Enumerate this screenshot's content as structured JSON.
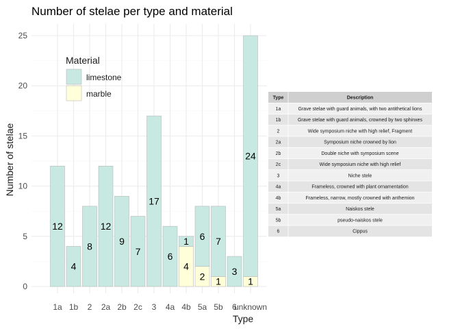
{
  "chart_data": {
    "type": "bar",
    "stacked": true,
    "title": "Number of stelae per type and material",
    "xlabel": "Type",
    "ylabel": "Number of stelae",
    "ylim": [
      0,
      25
    ],
    "y_ticks": [
      0,
      5,
      10,
      15,
      20,
      25
    ],
    "grid": true,
    "categories": [
      "1a",
      "1b",
      "2",
      "2a",
      "2b",
      "2c",
      "3",
      "4a",
      "4b",
      "5a",
      "5b",
      "6",
      "unknown"
    ],
    "series": [
      {
        "name": "limestone",
        "color": "#c7e9e1",
        "values": [
          12,
          4,
          8,
          12,
          9,
          7,
          17,
          6,
          1,
          6,
          7,
          3,
          24
        ]
      },
      {
        "name": "marble",
        "color": "#ffffd9",
        "values": [
          0,
          0,
          0,
          0,
          0,
          0,
          0,
          0,
          4,
          2,
          1,
          0,
          1
        ]
      }
    ],
    "legend": {
      "title": "Material",
      "placement": "top-left"
    },
    "table": {
      "headers": [
        "Type",
        "Description"
      ],
      "rows": [
        [
          "1a",
          "Grave stelae with guard animals, with two antithetical lions"
        ],
        [
          "1b",
          "Grave stelae with guard animals, crowned by two sphinxes"
        ],
        [
          "2",
          "Wide symposium niche with high relief, Fragment"
        ],
        [
          "2a",
          "Symposium niche crowned by lion"
        ],
        [
          "2b",
          "Double niche with symposium scene"
        ],
        [
          "2c",
          "Wide symposium niche with high relief"
        ],
        [
          "3",
          "Niche stele"
        ],
        [
          "4a",
          "Frameless, crowned with plant ornamentation"
        ],
        [
          "4b",
          "Frameless, narrow, mostly crowned with anthemion"
        ],
        [
          "5a",
          "Naiskos stele"
        ],
        [
          "5b",
          "pseudo-naiskos stele"
        ],
        [
          "6",
          "Cippus"
        ]
      ]
    }
  }
}
